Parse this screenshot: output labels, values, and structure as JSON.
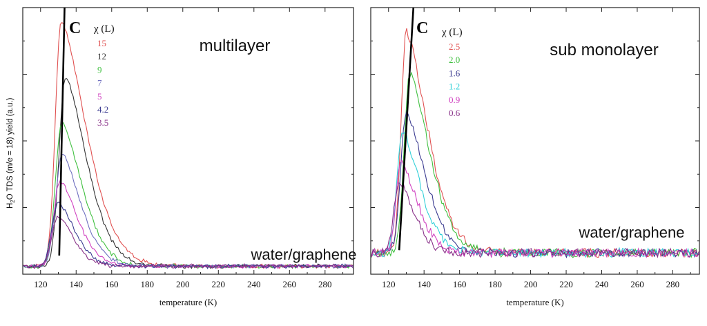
{
  "ylabel": "H2O TDS (m/e = 18) yield (a.u.)",
  "ylabel_parts": {
    "pre": "H",
    "sub": "2",
    "post": "O TDS (m/e = 18) yield (a.u.)"
  },
  "chart_data": [
    {
      "type": "line",
      "panel_letter": "C",
      "title": "multilayer",
      "system_label": "water/graphene",
      "xlabel": "temperature (K)",
      "ylabel": "H2O TDS (m/e = 18) yield (a.u.)",
      "legend_title": "χ (L)",
      "xlim": [
        110,
        296
      ],
      "ylim": [
        0,
        1.0
      ],
      "xticks": [
        120,
        140,
        160,
        180,
        200,
        220,
        240,
        260,
        280
      ],
      "peak_line": {
        "x": [
          130.5,
          133.5
        ],
        "y": [
          0.07,
          1.0
        ]
      },
      "series": [
        {
          "name": "15",
          "color": "#e05050",
          "peak_x": 131.5,
          "peak_y": 0.95,
          "baseline": 0.03,
          "rise_width": 4.5,
          "decay": 20
        },
        {
          "name": "12",
          "color": "#333333",
          "peak_x": 134,
          "peak_y": 0.74,
          "baseline": 0.03,
          "rise_width": 5,
          "decay": 17
        },
        {
          "name": "9",
          "color": "#40c040",
          "peak_x": 132,
          "peak_y": 0.57,
          "baseline": 0.03,
          "rise_width": 5,
          "decay": 16
        },
        {
          "name": "7",
          "color": "#7070c0",
          "peak_x": 132,
          "peak_y": 0.45,
          "baseline": 0.03,
          "rise_width": 5,
          "decay": 15
        },
        {
          "name": "5",
          "color": "#d040c0",
          "peak_x": 131,
          "peak_y": 0.35,
          "baseline": 0.03,
          "rise_width": 5,
          "decay": 14
        },
        {
          "name": "4.2",
          "color": "#3a3a90",
          "peak_x": 130,
          "peak_y": 0.27,
          "baseline": 0.03,
          "rise_width": 5,
          "decay": 13
        },
        {
          "name": "3.5",
          "color": "#883088",
          "peak_x": 130,
          "peak_y": 0.22,
          "baseline": 0.03,
          "rise_width": 5,
          "decay": 12
        }
      ]
    },
    {
      "type": "line",
      "panel_letter": "C",
      "title": "sub monolayer",
      "system_label": "water/graphene",
      "xlabel": "temperature (K)",
      "ylabel": "H2O TDS (m/e = 18) yield (a.u.)",
      "legend_title": "χ (L)",
      "xlim": [
        110,
        295
      ],
      "ylim": [
        0,
        1.0
      ],
      "xticks": [
        120,
        140,
        160,
        180,
        200,
        220,
        240,
        260,
        280
      ],
      "peak_line": {
        "x": [
          126,
          134
        ],
        "y": [
          0.09,
          1.0
        ]
      },
      "series": [
        {
          "name": "2.5",
          "color": "#e05050",
          "peak_x": 130,
          "peak_y": 0.91,
          "baseline": 0.08,
          "rise_width": 4,
          "decay": 17
        },
        {
          "name": "2.0",
          "color": "#40c040",
          "peak_x": 132,
          "peak_y": 0.75,
          "baseline": 0.08,
          "rise_width": 4.5,
          "decay": 16
        },
        {
          "name": "1.6",
          "color": "#3a3a90",
          "peak_x": 130,
          "peak_y": 0.61,
          "baseline": 0.08,
          "rise_width": 4.5,
          "decay": 15
        },
        {
          "name": "1.2",
          "color": "#30d0d8",
          "peak_x": 128,
          "peak_y": 0.53,
          "baseline": 0.08,
          "rise_width": 4.5,
          "decay": 14
        },
        {
          "name": "0.9",
          "color": "#d040c0",
          "peak_x": 127,
          "peak_y": 0.42,
          "baseline": 0.08,
          "rise_width": 4,
          "decay": 13
        },
        {
          "name": "0.6",
          "color": "#883088",
          "peak_x": 126,
          "peak_y": 0.35,
          "baseline": 0.08,
          "rise_width": 4,
          "decay": 12
        }
      ]
    }
  ]
}
